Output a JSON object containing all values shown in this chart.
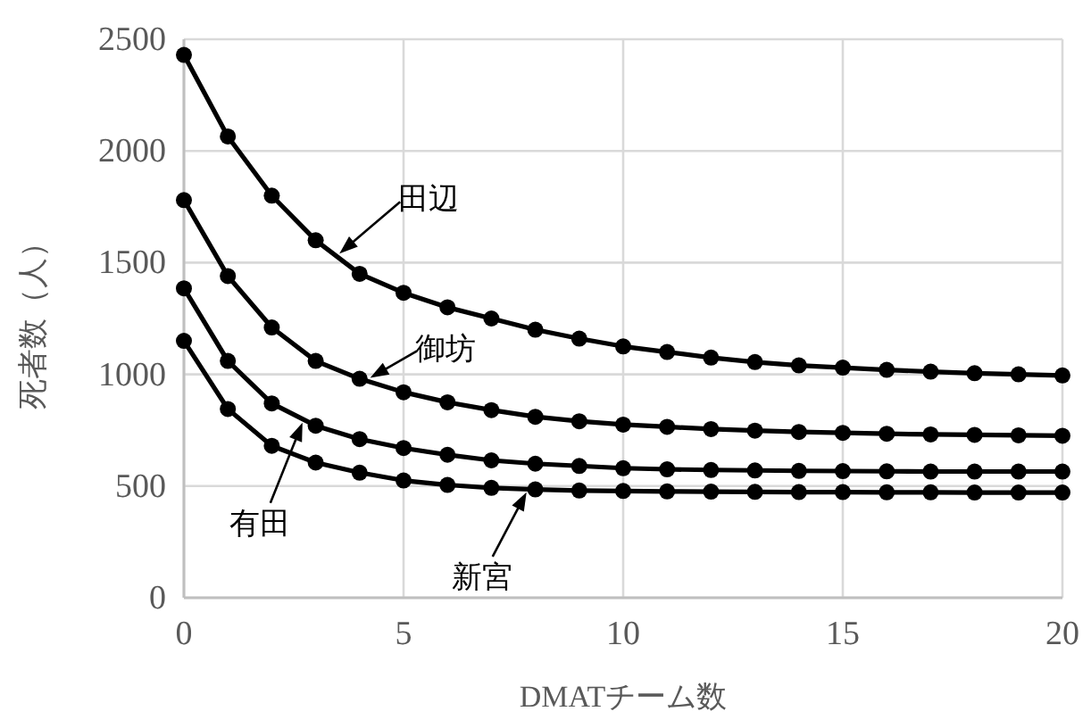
{
  "chart_data": {
    "type": "line",
    "xlabel": "DMATチーム数",
    "ylabel": "死者数（人）",
    "x": [
      0,
      1,
      2,
      3,
      4,
      5,
      6,
      7,
      8,
      9,
      10,
      11,
      12,
      13,
      14,
      15,
      16,
      17,
      18,
      19,
      20
    ],
    "xlim": [
      0,
      20
    ],
    "xticks": [
      0,
      5,
      10,
      15,
      20
    ],
    "ylim": [
      0,
      2500
    ],
    "yticks": [
      0,
      500,
      1000,
      1500,
      2000,
      2500
    ],
    "grid": true,
    "legend": false,
    "annotations": [
      {
        "text": "田辺",
        "x": 3.5,
        "y": 1525
      },
      {
        "text": "御坊",
        "x": 4.2,
        "y": 968
      },
      {
        "text": "有田",
        "x": 2.7,
        "y": 800
      },
      {
        "text": "新宮",
        "x": 7.8,
        "y": 488
      }
    ],
    "marker": "circle",
    "line_style": "solid",
    "series": [
      {
        "color": "#000000",
        "values": [
          2430,
          2065,
          1800,
          1600,
          1450,
          1365,
          1300,
          1250,
          1200,
          1160,
          1125,
          1100,
          1075,
          1055,
          1040,
          1030,
          1020,
          1012,
          1005,
          1000,
          995
        ]
      },
      {
        "color": "#000000",
        "values": [
          1780,
          1440,
          1210,
          1060,
          980,
          920,
          875,
          840,
          810,
          790,
          775,
          765,
          755,
          748,
          742,
          738,
          734,
          731,
          729,
          727,
          725
        ]
      },
      {
        "color": "#000000",
        "values": [
          1385,
          1060,
          870,
          770,
          710,
          670,
          640,
          615,
          600,
          590,
          580,
          575,
          572,
          570,
          568,
          567,
          566,
          565,
          565,
          565,
          565
        ]
      },
      {
        "color": "#000000",
        "values": [
          1150,
          845,
          680,
          605,
          560,
          525,
          505,
          492,
          485,
          480,
          478,
          476,
          475,
          474,
          473,
          473,
          472,
          472,
          471,
          471,
          471
        ]
      }
    ]
  }
}
